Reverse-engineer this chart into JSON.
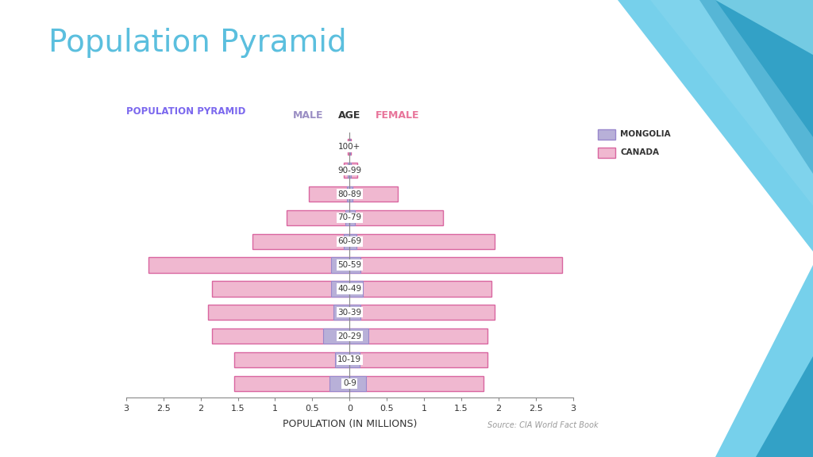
{
  "title": "Population Pyramid",
  "subtitle": "POPULATION PYRAMID",
  "xlabel": "POPULATION (IN MILLIONS)",
  "age_groups": [
    "0-9",
    "10-19",
    "20-29",
    "30-39",
    "40-49",
    "50-59",
    "60-69",
    "70-79",
    "80-89",
    "90-99",
    "100+"
  ],
  "canada_male": [
    1.55,
    1.55,
    1.85,
    1.9,
    1.85,
    2.7,
    1.3,
    0.85,
    0.55,
    0.08,
    0.02
  ],
  "canada_female": [
    1.8,
    1.85,
    1.85,
    1.95,
    1.9,
    2.85,
    1.95,
    1.25,
    0.65,
    0.1,
    0.02
  ],
  "mongolia_male": [
    0.27,
    0.2,
    0.35,
    0.22,
    0.25,
    0.25,
    0.08,
    0.06,
    0.04,
    0.02,
    0.005
  ],
  "mongolia_female": [
    0.22,
    0.13,
    0.25,
    0.15,
    0.18,
    0.15,
    0.09,
    0.07,
    0.04,
    0.02,
    0.005
  ],
  "xlim": 3.0,
  "title_color": "#5bbfde",
  "title_fontsize": 28,
  "subtitle_color": "#7b68ee",
  "male_label_color": "#9b8fc4",
  "female_label_color": "#e8749a",
  "canada_color": "#f0b8d0",
  "canada_edge_color": "#d966a0",
  "mongolia_color": "#b8b0d8",
  "mongolia_edge_color": "#9988cc",
  "source_text": "Source: CIA World Fact Book",
  "background_color": "#ffffff"
}
